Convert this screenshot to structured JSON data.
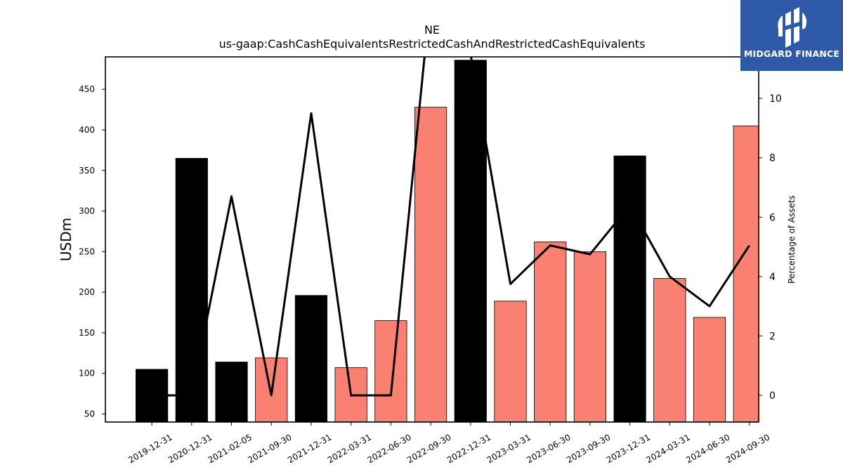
{
  "chart_data": {
    "type": "bar",
    "title": "NE",
    "subtitle": "us-gaap:CashCashEquivalentsRestrictedCashAndRestrictedCashEquivalents",
    "ylabel": "USDm",
    "y2label": "Percentage of Assets",
    "categories": [
      "2019-12-31",
      "2020-12-31",
      "2021-02-05",
      "2021-09-30",
      "2021-12-31",
      "2022-03-31",
      "2022-06-30",
      "2022-09-30",
      "2022-12-31",
      "2023-03-31",
      "2023-06-30",
      "2023-09-30",
      "2023-12-31",
      "2024-03-31",
      "2024-06-30",
      "2024-09-30"
    ],
    "values": [
      105,
      365,
      114,
      119,
      196,
      107,
      165,
      428,
      486,
      189,
      262,
      250,
      368,
      217,
      169,
      405
    ],
    "bar_colors": [
      "#000000",
      "#000000",
      "#000000",
      "#fa8072",
      "#000000",
      "#fa8072",
      "#fa8072",
      "#fa8072",
      "#000000",
      "#fa8072",
      "#fa8072",
      "#fa8072",
      "#000000",
      "#fa8072",
      "#fa8072",
      "#fa8072"
    ],
    "line_values": [
      0,
      0,
      6.7,
      0,
      9.5,
      0,
      0,
      13.5,
      11.5,
      3.75,
      5.05,
      4.75,
      6.4,
      4.0,
      3.0,
      5.05
    ],
    "line_color": "#000000",
    "ylim": [
      40,
      490
    ],
    "y2lim": [
      -0.9,
      11.4
    ],
    "yticks": [
      50,
      100,
      150,
      200,
      250,
      300,
      350,
      400,
      450
    ],
    "y2ticks": [
      0,
      2,
      4,
      6,
      8,
      10
    ],
    "grid": false,
    "legend": "none"
  },
  "logo": {
    "brand_text": "MIDGARD FINANCE",
    "icon": "midgard-logo-icon",
    "bg_color": "#2e59a8"
  }
}
